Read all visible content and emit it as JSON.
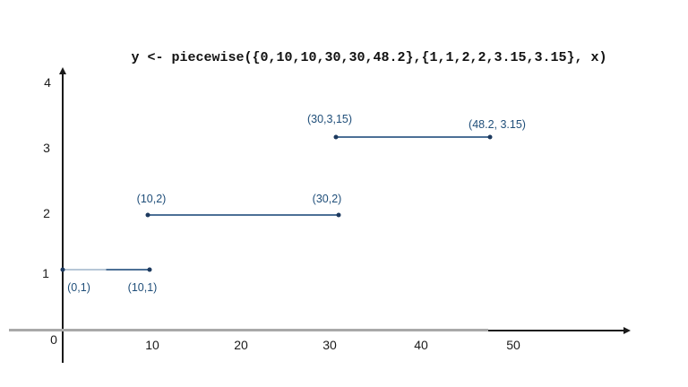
{
  "title": "y <- piecewise({0,10,10,30,30,48.2},{1,1,2,2,3.15,3.15}, x)",
  "colors": {
    "segment_line": "#4c7096",
    "segment_line_faded_left": "#b6c6d7",
    "point_dot": "#1d3a5f",
    "point_label": "#1f4e79",
    "axis_line": "#1a1a1a",
    "x_axis_gray_overlay": "#a9a9a9",
    "background": "#ffffff"
  },
  "axes": {
    "x_tick_labels": [
      "0",
      "10",
      "20",
      "30",
      "40",
      "50"
    ],
    "y_tick_labels": [
      "1",
      "2",
      "3",
      "4"
    ]
  },
  "chart_data": {
    "type": "line",
    "subtype": "piecewise-constant-step-segments",
    "title": "y <- piecewise({0,10,10,30,30,48.2},{1,1,2,2,3.15,3.15}, x)",
    "xlabel": "",
    "ylabel": "",
    "xlim": [
      0,
      59
    ],
    "ylim": [
      0,
      4
    ],
    "x_tick_values": [
      0,
      10,
      20,
      30,
      40,
      50
    ],
    "y_tick_values": [
      1,
      2,
      3,
      4
    ],
    "grid": false,
    "legend": false,
    "segments": [
      {
        "y": 1,
        "x_start": 0,
        "x_end": 10,
        "faded_left_half": true
      },
      {
        "y": 2,
        "x_start": 10,
        "x_end": 30,
        "faded_left_half": false
      },
      {
        "y": 3.15,
        "x_start": 30,
        "x_end": 48.2,
        "faded_left_half": false
      }
    ],
    "points": [
      {
        "x": 0,
        "y": 1,
        "label": "(0,1)"
      },
      {
        "x": 10,
        "y": 1,
        "label": "(10,1)"
      },
      {
        "x": 10,
        "y": 2,
        "label": "(10,2)"
      },
      {
        "x": 30,
        "y": 2,
        "label": "(30,2)"
      },
      {
        "x": 30,
        "y": 3.15,
        "label": "(30,3,15)"
      },
      {
        "x": 48.2,
        "y": 3.15,
        "label": "(48.2, 3.15)"
      }
    ]
  }
}
